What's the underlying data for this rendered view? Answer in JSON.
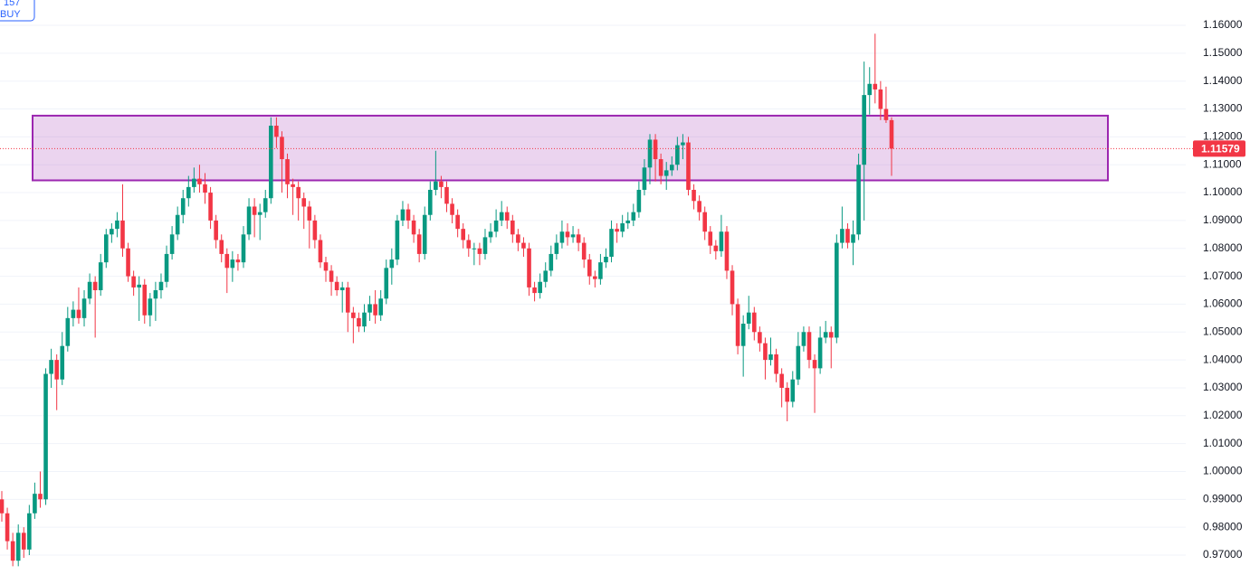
{
  "chart_data": {
    "type": "candlestick",
    "order_tag": {
      "price": "157",
      "side": "BUY"
    },
    "ylim": [
      0.96287,
      1.16908
    ],
    "yticks": [
      {
        "value": 0.97,
        "label": "0.97000"
      },
      {
        "value": 0.98,
        "label": "0.98000"
      },
      {
        "value": 0.99,
        "label": "0.99000"
      },
      {
        "value": 1.0,
        "label": "1.00000"
      },
      {
        "value": 1.01,
        "label": "1.01000"
      },
      {
        "value": 1.02,
        "label": "1.02000"
      },
      {
        "value": 1.03,
        "label": "1.03000"
      },
      {
        "value": 1.04,
        "label": "1.04000"
      },
      {
        "value": 1.05,
        "label": "1.05000"
      },
      {
        "value": 1.06,
        "label": "1.06000"
      },
      {
        "value": 1.07,
        "label": "1.07000"
      },
      {
        "value": 1.08,
        "label": "1.08000"
      },
      {
        "value": 1.09,
        "label": "1.09000"
      },
      {
        "value": 1.1,
        "label": "1.10000"
      },
      {
        "value": 1.11,
        "label": "1.11000"
      },
      {
        "value": 1.12,
        "label": "1.12000"
      },
      {
        "value": 1.13,
        "label": "1.13000"
      },
      {
        "value": 1.14,
        "label": "1.14000"
      },
      {
        "value": 1.15,
        "label": "1.15000"
      },
      {
        "value": 1.16,
        "label": "1.16000"
      }
    ],
    "grid": true,
    "up_color": "#089981",
    "down_color": "#f23645",
    "zone": {
      "high": 1.1276,
      "low": 1.1044,
      "color": "#9c27b0"
    },
    "last_price": {
      "value": 1.11579,
      "label": "1.11579",
      "color": "#f23645"
    },
    "ohlc": [
      [
        0.99,
        0.993,
        0.982,
        0.985
      ],
      [
        0.985,
        0.987,
        0.972,
        0.975
      ],
      [
        0.975,
        0.978,
        0.966,
        0.968
      ],
      [
        0.968,
        0.981,
        0.966,
        0.978
      ],
      [
        0.978,
        0.98,
        0.969,
        0.972
      ],
      [
        0.972,
        0.988,
        0.97,
        0.985
      ],
      [
        0.985,
        0.996,
        0.983,
        0.992
      ],
      [
        0.992,
        1.0,
        0.987,
        0.99
      ],
      [
        0.99,
        1.037,
        0.988,
        1.035
      ],
      [
        1.035,
        1.044,
        1.03,
        1.04
      ],
      [
        1.04,
        1.042,
        1.022,
        1.033
      ],
      [
        1.033,
        1.05,
        1.031,
        1.045
      ],
      [
        1.045,
        1.059,
        1.043,
        1.055
      ],
      [
        1.055,
        1.061,
        1.052,
        1.058
      ],
      [
        1.058,
        1.066,
        1.053,
        1.055
      ],
      [
        1.055,
        1.065,
        1.052,
        1.062
      ],
      [
        1.062,
        1.071,
        1.06,
        1.068
      ],
      [
        1.068,
        1.07,
        1.048,
        1.065
      ],
      [
        1.065,
        1.078,
        1.063,
        1.075
      ],
      [
        1.075,
        1.087,
        1.073,
        1.085
      ],
      [
        1.085,
        1.089,
        1.082,
        1.087
      ],
      [
        1.087,
        1.093,
        1.084,
        1.09
      ],
      [
        1.09,
        1.103,
        1.077,
        1.08
      ],
      [
        1.08,
        1.082,
        1.068,
        1.07
      ],
      [
        1.07,
        1.072,
        1.063,
        1.066
      ],
      [
        1.066,
        1.07,
        1.054,
        1.067
      ],
      [
        1.067,
        1.069,
        1.053,
        1.056
      ],
      [
        1.056,
        1.064,
        1.052,
        1.062
      ],
      [
        1.062,
        1.068,
        1.054,
        1.065
      ],
      [
        1.065,
        1.071,
        1.062,
        1.068
      ],
      [
        1.068,
        1.081,
        1.066,
        1.078
      ],
      [
        1.078,
        1.088,
        1.076,
        1.085
      ],
      [
        1.085,
        1.095,
        1.083,
        1.092
      ],
      [
        1.092,
        1.101,
        1.089,
        1.098
      ],
      [
        1.098,
        1.106,
        1.095,
        1.102
      ],
      [
        1.102,
        1.109,
        1.1,
        1.105
      ],
      [
        1.105,
        1.11,
        1.1,
        1.103
      ],
      [
        1.103,
        1.107,
        1.096,
        1.1
      ],
      [
        1.1,
        1.102,
        1.087,
        1.09
      ],
      [
        1.09,
        1.092,
        1.08,
        1.083
      ],
      [
        1.083,
        1.085,
        1.075,
        1.078
      ],
      [
        1.078,
        1.08,
        1.064,
        1.073
      ],
      [
        1.073,
        1.079,
        1.068,
        1.076
      ],
      [
        1.076,
        1.078,
        1.072,
        1.075
      ],
      [
        1.075,
        1.088,
        1.073,
        1.085
      ],
      [
        1.085,
        1.098,
        1.083,
        1.095
      ],
      [
        1.095,
        1.098,
        1.084,
        1.092
      ],
      [
        1.092,
        1.096,
        1.083,
        1.093
      ],
      [
        1.093,
        1.101,
        1.091,
        1.098
      ],
      [
        1.098,
        1.127,
        1.096,
        1.124
      ],
      [
        1.124,
        1.127,
        1.116,
        1.12
      ],
      [
        1.12,
        1.122,
        1.1,
        1.112
      ],
      [
        1.112,
        1.114,
        1.098,
        1.103
      ],
      [
        1.103,
        1.105,
        1.092,
        1.102
      ],
      [
        1.102,
        1.104,
        1.09,
        1.098
      ],
      [
        1.098,
        1.1,
        1.087,
        1.095
      ],
      [
        1.095,
        1.097,
        1.08,
        1.09
      ],
      [
        1.09,
        1.092,
        1.08,
        1.083
      ],
      [
        1.083,
        1.085,
        1.073,
        1.075
      ],
      [
        1.075,
        1.077,
        1.068,
        1.072
      ],
      [
        1.072,
        1.074,
        1.063,
        1.068
      ],
      [
        1.068,
        1.07,
        1.063,
        1.065
      ],
      [
        1.065,
        1.068,
        1.057,
        1.066
      ],
      [
        1.066,
        1.068,
        1.05,
        1.057
      ],
      [
        1.057,
        1.059,
        1.046,
        1.055
      ],
      [
        1.055,
        1.057,
        1.05,
        1.052
      ],
      [
        1.052,
        1.06,
        1.05,
        1.057
      ],
      [
        1.057,
        1.063,
        1.054,
        1.06
      ],
      [
        1.06,
        1.065,
        1.053,
        1.056
      ],
      [
        1.056,
        1.065,
        1.054,
        1.062
      ],
      [
        1.062,
        1.076,
        1.06,
        1.073
      ],
      [
        1.073,
        1.08,
        1.067,
        1.076
      ],
      [
        1.076,
        1.092,
        1.074,
        1.09
      ],
      [
        1.09,
        1.097,
        1.088,
        1.094
      ],
      [
        1.094,
        1.096,
        1.087,
        1.09
      ],
      [
        1.09,
        1.092,
        1.082,
        1.085
      ],
      [
        1.085,
        1.087,
        1.075,
        1.078
      ],
      [
        1.078,
        1.095,
        1.076,
        1.092
      ],
      [
        1.092,
        1.104,
        1.09,
        1.101
      ],
      [
        1.101,
        1.115,
        1.099,
        1.104
      ],
      [
        1.104,
        1.106,
        1.098,
        1.102
      ],
      [
        1.102,
        1.104,
        1.093,
        1.096
      ],
      [
        1.096,
        1.098,
        1.089,
        1.092
      ],
      [
        1.092,
        1.094,
        1.084,
        1.087
      ],
      [
        1.087,
        1.089,
        1.08,
        1.083
      ],
      [
        1.083,
        1.085,
        1.077,
        1.08
      ],
      [
        1.08,
        1.082,
        1.074,
        1.08
      ],
      [
        1.08,
        1.082,
        1.074,
        1.078
      ],
      [
        1.078,
        1.087,
        1.076,
        1.084
      ],
      [
        1.084,
        1.089,
        1.082,
        1.086
      ],
      [
        1.086,
        1.094,
        1.084,
        1.09
      ],
      [
        1.09,
        1.097,
        1.088,
        1.093
      ],
      [
        1.093,
        1.095,
        1.087,
        1.09
      ],
      [
        1.09,
        1.092,
        1.082,
        1.085
      ],
      [
        1.085,
        1.087,
        1.079,
        1.082
      ],
      [
        1.082,
        1.084,
        1.077,
        1.08
      ],
      [
        1.08,
        1.082,
        1.063,
        1.066
      ],
      [
        1.066,
        1.068,
        1.061,
        1.064
      ],
      [
        1.064,
        1.071,
        1.062,
        1.068
      ],
      [
        1.068,
        1.075,
        1.066,
        1.072
      ],
      [
        1.072,
        1.081,
        1.07,
        1.078
      ],
      [
        1.078,
        1.085,
        1.076,
        1.082
      ],
      [
        1.082,
        1.09,
        1.08,
        1.086
      ],
      [
        1.086,
        1.089,
        1.081,
        1.084
      ],
      [
        1.084,
        1.088,
        1.082,
        1.085
      ],
      [
        1.085,
        1.087,
        1.079,
        1.082
      ],
      [
        1.082,
        1.084,
        1.073,
        1.076
      ],
      [
        1.076,
        1.078,
        1.067,
        1.07
      ],
      [
        1.07,
        1.072,
        1.066,
        1.069
      ],
      [
        1.069,
        1.078,
        1.067,
        1.075
      ],
      [
        1.075,
        1.08,
        1.073,
        1.077
      ],
      [
        1.077,
        1.09,
        1.075,
        1.087
      ],
      [
        1.087,
        1.089,
        1.082,
        1.086
      ],
      [
        1.086,
        1.092,
        1.084,
        1.089
      ],
      [
        1.089,
        1.093,
        1.087,
        1.09
      ],
      [
        1.09,
        1.096,
        1.088,
        1.093
      ],
      [
        1.093,
        1.104,
        1.091,
        1.101
      ],
      [
        1.101,
        1.112,
        1.099,
        1.109
      ],
      [
        1.109,
        1.121,
        1.103,
        1.119
      ],
      [
        1.119,
        1.121,
        1.104,
        1.112
      ],
      [
        1.112,
        1.114,
        1.103,
        1.106
      ],
      [
        1.106,
        1.111,
        1.101,
        1.108
      ],
      [
        1.108,
        1.113,
        1.106,
        1.11
      ],
      [
        1.11,
        1.12,
        1.108,
        1.117
      ],
      [
        1.117,
        1.121,
        1.112,
        1.118
      ],
      [
        1.118,
        1.12,
        1.099,
        1.101
      ],
      [
        1.101,
        1.103,
        1.094,
        1.097
      ],
      [
        1.097,
        1.099,
        1.09,
        1.093
      ],
      [
        1.093,
        1.095,
        1.083,
        1.086
      ],
      [
        1.086,
        1.088,
        1.078,
        1.081
      ],
      [
        1.081,
        1.083,
        1.076,
        1.079
      ],
      [
        1.079,
        1.092,
        1.077,
        1.086
      ],
      [
        1.086,
        1.088,
        1.069,
        1.072
      ],
      [
        1.072,
        1.074,
        1.056,
        1.06
      ],
      [
        1.06,
        1.062,
        1.042,
        1.045
      ],
      [
        1.045,
        1.056,
        1.034,
        1.053
      ],
      [
        1.053,
        1.063,
        1.051,
        1.057
      ],
      [
        1.057,
        1.059,
        1.047,
        1.05
      ],
      [
        1.05,
        1.052,
        1.043,
        1.046
      ],
      [
        1.046,
        1.048,
        1.033,
        1.04
      ],
      [
        1.04,
        1.048,
        1.038,
        1.042
      ],
      [
        1.042,
        1.044,
        1.032,
        1.035
      ],
      [
        1.035,
        1.037,
        1.023,
        1.03
      ],
      [
        1.03,
        1.032,
        1.018,
        1.025
      ],
      [
        1.025,
        1.036,
        1.023,
        1.033
      ],
      [
        1.033,
        1.05,
        1.031,
        1.045
      ],
      [
        1.045,
        1.052,
        1.043,
        1.05
      ],
      [
        1.05,
        1.052,
        1.037,
        1.04
      ],
      [
        1.04,
        1.042,
        1.021,
        1.037
      ],
      [
        1.037,
        1.052,
        1.035,
        1.048
      ],
      [
        1.048,
        1.054,
        1.046,
        1.05
      ],
      [
        1.05,
        1.052,
        1.037,
        1.048
      ],
      [
        1.048,
        1.085,
        1.046,
        1.082
      ],
      [
        1.082,
        1.095,
        1.08,
        1.087
      ],
      [
        1.087,
        1.089,
        1.08,
        1.082
      ],
      [
        1.082,
        1.09,
        1.074,
        1.085
      ],
      [
        1.085,
        1.114,
        1.083,
        1.11
      ],
      [
        1.11,
        1.147,
        1.09,
        1.135
      ],
      [
        1.135,
        1.145,
        1.128,
        1.139
      ],
      [
        1.139,
        1.157,
        1.132,
        1.137
      ],
      [
        1.137,
        1.14,
        1.126,
        1.13
      ],
      [
        1.13,
        1.138,
        1.125,
        1.126
      ],
      [
        1.126,
        1.127,
        1.106,
        1.11579
      ]
    ]
  }
}
